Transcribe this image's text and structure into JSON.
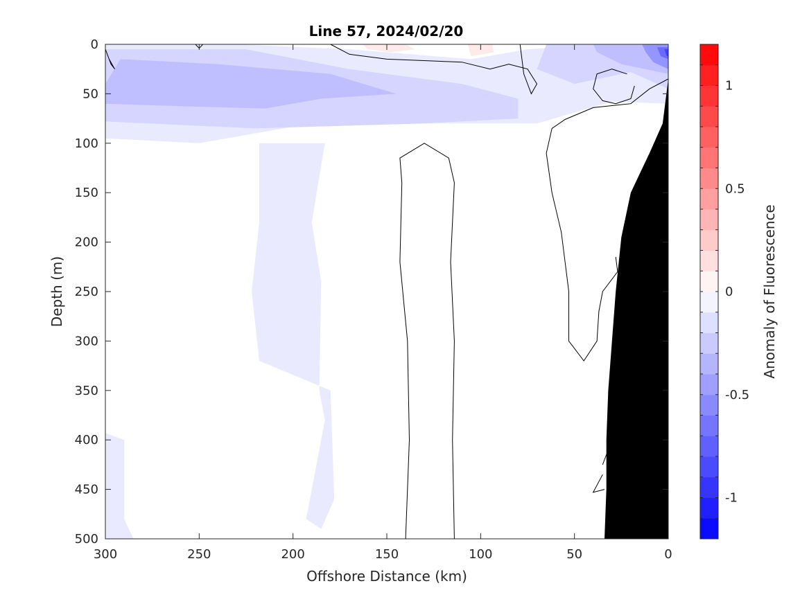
{
  "chart_data": {
    "type": "heatmap",
    "subtype": "filled-contour",
    "title": "Line 57, 2024/02/20",
    "xlabel": "Offshore Distance (km)",
    "ylabel": "Depth (m)",
    "xlim": [
      300,
      0
    ],
    "ylim": [
      0,
      500
    ],
    "x_reversed": true,
    "y_reversed": true,
    "x_ticks": [
      300,
      250,
      200,
      150,
      100,
      50,
      0
    ],
    "y_ticks": [
      0,
      50,
      100,
      150,
      200,
      250,
      300,
      350,
      400,
      450,
      500
    ],
    "colorbar": {
      "label": "Anomaly of Fluorescence",
      "range": [
        -1.2,
        1.2
      ],
      "level_step": 0.1,
      "ticks": [
        -1,
        -0.5,
        0,
        0.5,
        1
      ],
      "negative_color": "#0000ff",
      "positive_color": "#ff0000",
      "neutral_color": "#ffffff"
    },
    "regions": [
      {
        "value": -0.1,
        "points": [
          [
            300,
            0
          ],
          [
            230,
            0
          ],
          [
            170,
            5
          ],
          [
            105,
            15
          ],
          [
            75,
            5
          ],
          [
            30,
            0
          ],
          [
            0,
            0
          ],
          [
            0,
            60
          ],
          [
            30,
            58
          ],
          [
            70,
            80
          ],
          [
            190,
            80
          ],
          [
            250,
            100
          ],
          [
            300,
            95
          ]
        ]
      },
      {
        "value": -0.1,
        "points": [
          [
            218,
            100
          ],
          [
            183,
            100
          ],
          [
            190,
            180
          ],
          [
            185,
            240
          ],
          [
            186,
            350
          ],
          [
            183,
            380
          ],
          [
            193,
            480
          ],
          [
            185,
            490
          ],
          [
            178,
            460
          ],
          [
            180,
            350
          ],
          [
            218,
            320
          ],
          [
            222,
            250
          ],
          [
            218,
            180
          ]
        ]
      },
      {
        "value": -0.1,
        "points": [
          [
            300,
            393
          ],
          [
            290,
            400
          ],
          [
            290,
            480
          ],
          [
            285,
            500
          ],
          [
            300,
            500
          ]
        ]
      },
      {
        "value": -0.2,
        "points": [
          [
            300,
            5
          ],
          [
            225,
            5
          ],
          [
            170,
            25
          ],
          [
            110,
            40
          ],
          [
            80,
            55
          ],
          [
            80,
            75
          ],
          [
            130,
            80
          ],
          [
            220,
            85
          ],
          [
            300,
            78
          ]
        ]
      },
      {
        "value": -0.2,
        "points": [
          [
            65,
            0
          ],
          [
            10,
            0
          ],
          [
            0,
            5
          ],
          [
            0,
            45
          ],
          [
            20,
            28
          ],
          [
            50,
            40
          ],
          [
            70,
            25
          ]
        ]
      },
      {
        "value": -0.3,
        "points": [
          [
            292,
            15
          ],
          [
            240,
            20
          ],
          [
            180,
            30
          ],
          [
            145,
            50
          ],
          [
            185,
            55
          ],
          [
            215,
            65
          ],
          [
            270,
            62
          ],
          [
            300,
            60
          ],
          [
            300,
            40
          ]
        ]
      },
      {
        "value": -0.3,
        "points": [
          [
            40,
            0
          ],
          [
            0,
            0
          ],
          [
            0,
            30
          ],
          [
            25,
            20
          ],
          [
            38,
            8
          ]
        ]
      },
      {
        "value": -0.5,
        "points": [
          [
            14,
            0
          ],
          [
            0,
            0
          ],
          [
            0,
            25
          ],
          [
            8,
            18
          ],
          [
            12,
            8
          ]
        ]
      },
      {
        "value": -0.7,
        "points": [
          [
            6,
            3
          ],
          [
            0,
            3
          ],
          [
            0,
            15
          ],
          [
            4,
            12
          ]
        ]
      },
      {
        "value": -0.9,
        "points": [
          [
            2,
            5
          ],
          [
            0,
            5
          ],
          [
            0,
            13
          ],
          [
            1,
            11
          ]
        ]
      },
      {
        "value": 0.1,
        "points": [
          [
            163,
            0
          ],
          [
            140,
            0
          ],
          [
            135,
            5
          ],
          [
            148,
            8
          ],
          [
            160,
            5
          ]
        ]
      },
      {
        "value": 0.1,
        "points": [
          [
            107,
            0
          ],
          [
            94,
            0
          ],
          [
            93,
            8
          ],
          [
            105,
            12
          ]
        ]
      }
    ],
    "contours": [
      {
        "value": 0,
        "points": [
          [
            140,
            500
          ],
          [
            138,
            400
          ],
          [
            139,
            300
          ],
          [
            143,
            220
          ],
          [
            142,
            140
          ],
          [
            143,
            115
          ],
          [
            130,
            100
          ],
          [
            117,
            115
          ],
          [
            114,
            140
          ],
          [
            116,
            220
          ],
          [
            114,
            300
          ],
          [
            115,
            400
          ],
          [
            114,
            500
          ]
        ]
      },
      {
        "value": 0,
        "points": [
          [
            180,
            0
          ],
          [
            170,
            10
          ],
          [
            150,
            15
          ],
          [
            110,
            18
          ],
          [
            95,
            25
          ],
          [
            85,
            20
          ],
          [
            75,
            25
          ],
          [
            70,
            40
          ],
          [
            73,
            50
          ],
          [
            77,
            30
          ],
          [
            79,
            0
          ]
        ]
      },
      {
        "value": 0,
        "points": [
          [
            22,
            30
          ],
          [
            30,
            25
          ],
          [
            38,
            30
          ],
          [
            40,
            45
          ],
          [
            35,
            57
          ],
          [
            28,
            60
          ],
          [
            20,
            55
          ],
          [
            18,
            42
          ]
        ]
      },
      {
        "value": 0,
        "points": [
          [
            0,
            35
          ],
          [
            10,
            45
          ],
          [
            20,
            60
          ],
          [
            40,
            64
          ],
          [
            55,
            76
          ],
          [
            62,
            85
          ],
          [
            65,
            110
          ],
          [
            62,
            150
          ],
          [
            57,
            190
          ],
          [
            53,
            250
          ],
          [
            53,
            300
          ],
          [
            45,
            320
          ],
          [
            38,
            300
          ],
          [
            37,
            270
          ],
          [
            35,
            250
          ],
          [
            27,
            230
          ],
          [
            28,
            215
          ]
        ]
      },
      {
        "value": 0,
        "points": [
          [
            300,
            5
          ],
          [
            297,
            20
          ],
          [
            295,
            25
          ],
          [
            298,
            15
          ]
        ]
      },
      {
        "value": 0,
        "points": [
          [
            252,
            0
          ],
          [
            250,
            4
          ],
          [
            248,
            0
          ]
        ]
      },
      {
        "value": 0,
        "points": [
          [
            32,
            410
          ],
          [
            35,
            425
          ]
        ]
      },
      {
        "value": 0,
        "points": [
          [
            34,
            450
          ],
          [
            40,
            453
          ],
          [
            35,
            435
          ]
        ]
      }
    ],
    "bathymetry": {
      "color": "#000000",
      "points": [
        [
          0,
          35
        ],
        [
          3,
          80
        ],
        [
          10,
          110
        ],
        [
          20,
          150
        ],
        [
          25,
          195
        ],
        [
          28,
          250
        ],
        [
          30,
          300
        ],
        [
          32,
          350
        ],
        [
          33,
          400
        ],
        [
          33,
          450
        ],
        [
          34,
          500
        ],
        [
          0,
          500
        ]
      ]
    }
  }
}
